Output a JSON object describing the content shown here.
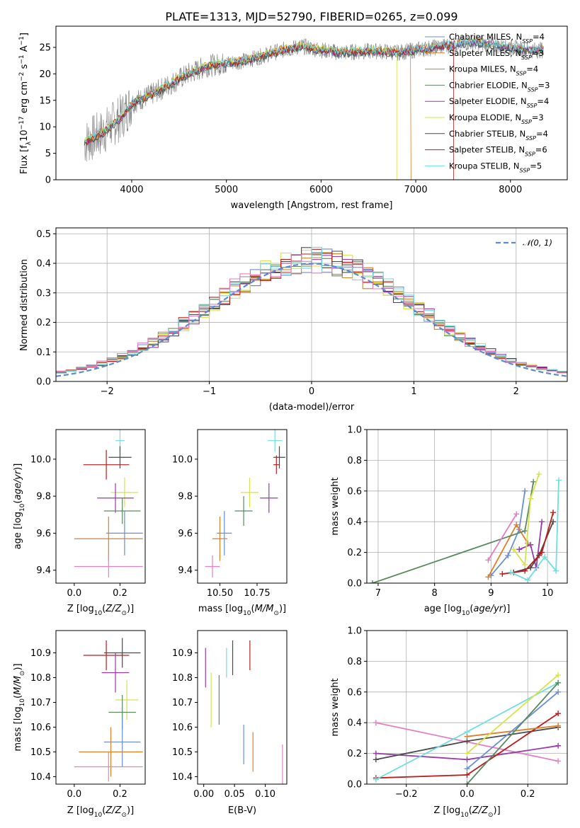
{
  "colors": {
    "Chabrier MILES": "#6a8fd5",
    "Salpeter MILES": "#e07f2a",
    "Kroupa MILES": "#c08a1e",
    "Chabrier ELODIE": "#5a8a60",
    "Salpeter ELODIE": "#9a3aa8",
    "Kroupa ELODIE": "#d6e34a",
    "Chabrier STELIB": "#4a4a4a",
    "Salpeter STELIB": "#b81e1e",
    "Kroupa STELIB": "#6fdede",
    "pink": "#e57fbf",
    "data": "#7f7f7f",
    "grid": "#b0b0b0"
  },
  "chart_data": [
    {
      "type": "line",
      "title": "PLATE=1313, MJD=52790, FIBERID=0265, z=0.099",
      "xlabel": "wavelength [Angstrom, rest frame]",
      "ylabel": "Flux [f_λ10^{-17} erg cm^{-2} s^{-1} A^{-1}]",
      "xlim": [
        3200,
        8600
      ],
      "ylim": [
        0,
        29
      ],
      "xticks": [
        4000,
        5000,
        6000,
        7000,
        8000
      ],
      "yticks": [
        0,
        5,
        10,
        15,
        20,
        25
      ],
      "grid": false,
      "legend": "top-right",
      "series": [
        {
          "name": "Chabrier MILES, N_SSP=4"
        },
        {
          "name": "Salpeter MILES, N_SSP=3"
        },
        {
          "name": "Kroupa MILES, N_SSP=4"
        },
        {
          "name": "Chabrier ELODIE, N_SSP=3"
        },
        {
          "name": "Salpeter ELODIE, N_SSP=4"
        },
        {
          "name": "Kroupa ELODIE, N_SSP=3"
        },
        {
          "name": "Chabrier STELIB, N_SSP=4"
        },
        {
          "name": "Salpeter STELIB, N_SSP=6"
        },
        {
          "name": "Kroupa STELIB, N_SSP=5"
        }
      ],
      "continuum": {
        "x": [
          3500,
          3700,
          3900,
          4000,
          4200,
          4400,
          4600,
          4800,
          5000,
          5200,
          5400,
          5600,
          5800,
          6000,
          6200,
          6400,
          6600,
          6800,
          7000,
          7200,
          7400,
          7600,
          7800,
          8000,
          8200,
          8350
        ],
        "y": [
          7,
          9,
          12,
          14.5,
          16,
          18,
          20,
          21.5,
          22,
          22.5,
          23.5,
          24.5,
          25.2,
          24.5,
          24,
          24.2,
          24.3,
          24,
          24.5,
          25,
          25.5,
          26,
          25.5,
          25,
          24.5,
          24.5
        ]
      }
    },
    {
      "type": "histogram",
      "xlabel": "(data-model)/error",
      "ylabel": "Normed distribution",
      "xlim": [
        -2.5,
        2.5
      ],
      "ylim": [
        0,
        0.52
      ],
      "xticks": [
        -2,
        -1,
        0,
        1,
        2
      ],
      "yticks": [
        0.0,
        0.1,
        0.2,
        0.3,
        0.4,
        0.5
      ],
      "grid": true,
      "legend": "top-right",
      "reference": {
        "name": "𝒩(0, 1)",
        "mean": 0,
        "sigma": 1
      },
      "bin_width": 0.1
    },
    {
      "type": "scatter",
      "xlabel": "Z [log10(Z/Z⊙)]",
      "ylabel": "age  [log10(age/yr)]",
      "xlim": [
        -0.08,
        0.31
      ],
      "ylim": [
        9.33,
        10.16
      ],
      "xticks": [
        0.0,
        0.2
      ],
      "yticks": [
        9.4,
        9.6,
        9.8,
        10.0
      ],
      "points": [
        {
          "c": "Kroupa STELIB",
          "x": 0.2,
          "y": 10.1,
          "xe": 0.02,
          "ye": 0.06
        },
        {
          "c": "Chabrier STELIB",
          "x": 0.2,
          "y": 10.01,
          "xe": 0.05,
          "ye": 0.06
        },
        {
          "c": "Salpeter STELIB",
          "x": 0.14,
          "y": 9.97,
          "xe": 0.1,
          "ye": 0.08
        },
        {
          "c": "Kroupa ELODIE",
          "x": 0.22,
          "y": 9.82,
          "xe": 0.06,
          "ye": 0.08
        },
        {
          "c": "Salpeter ELODIE",
          "x": 0.18,
          "y": 9.79,
          "xe": 0.08,
          "ye": 0.08
        },
        {
          "c": "Chabrier ELODIE",
          "x": 0.21,
          "y": 9.72,
          "xe": 0.08,
          "ye": 0.07
        },
        {
          "c": "Chabrier MILES",
          "x": 0.22,
          "y": 9.6,
          "xe": 0.08,
          "ye": 0.12
        },
        {
          "c": "Salpeter MILES",
          "x": 0.15,
          "y": 9.57,
          "xe": 0.15,
          "ye": 0.12
        },
        {
          "c": "pink",
          "x": 0.15,
          "y": 9.42,
          "xe": 0.15,
          "ye": 0.06
        }
      ]
    },
    {
      "type": "scatter",
      "xlabel": "mass [log10(M/M⊙)]",
      "ylabel": "",
      "xlim": [
        10.35,
        10.95
      ],
      "ylim": [
        9.33,
        10.16
      ],
      "xticks": [
        10.5,
        10.75
      ],
      "yticks": [
        9.4,
        9.6,
        9.8,
        10.0
      ],
      "points": [
        {
          "c": "Kroupa STELIB",
          "x": 10.87,
          "y": 10.1,
          "xe": 0.05,
          "ye": 0.06
        },
        {
          "c": "Chabrier STELIB",
          "x": 10.9,
          "y": 10.01,
          "xe": 0.04,
          "ye": 0.06
        },
        {
          "c": "Salpeter STELIB",
          "x": 10.88,
          "y": 9.97,
          "xe": 0.02,
          "ye": 0.05
        },
        {
          "c": "Kroupa ELODIE",
          "x": 10.7,
          "y": 9.82,
          "xe": 0.06,
          "ye": 0.08
        },
        {
          "c": "Salpeter ELODIE",
          "x": 10.83,
          "y": 9.79,
          "xe": 0.06,
          "ye": 0.08
        },
        {
          "c": "Chabrier ELODIE",
          "x": 10.66,
          "y": 9.72,
          "xe": 0.06,
          "ye": 0.08
        },
        {
          "c": "Chabrier MILES",
          "x": 10.53,
          "y": 9.6,
          "xe": 0.05,
          "ye": 0.12
        },
        {
          "c": "Salpeter MILES",
          "x": 10.5,
          "y": 9.57,
          "xe": 0.05,
          "ye": 0.12
        },
        {
          "c": "pink",
          "x": 10.45,
          "y": 9.42,
          "xe": 0.05,
          "ye": 0.06
        }
      ]
    },
    {
      "type": "line",
      "xlabel": "age  [log10(age/yr)]",
      "ylabel": "mass weight",
      "xlim": [
        6.8,
        10.35
      ],
      "ylim": [
        0,
        1.0
      ],
      "xticks": [
        7,
        8,
        9,
        10
      ],
      "yticks": [
        0.0,
        0.2,
        0.4,
        0.6,
        0.8,
        1.0
      ],
      "grid": true,
      "series": [
        {
          "c": "Chabrier MILES",
          "x": [
            9.0,
            9.3,
            9.5,
            9.6
          ],
          "y": [
            0.05,
            0.18,
            0.35,
            0.6
          ]
        },
        {
          "c": "Salpeter MILES",
          "x": [
            8.95,
            9.45,
            9.65
          ],
          "y": [
            0.04,
            0.38,
            0.26
          ]
        },
        {
          "c": "Chabrier ELODIE",
          "x": [
            6.9,
            9.6,
            9.75
          ],
          "y": [
            0.0,
            0.34,
            0.66
          ]
        },
        {
          "c": "Salpeter ELODIE",
          "x": [
            9.5,
            9.7,
            9.8,
            9.9
          ],
          "y": [
            0.22,
            0.25,
            0.1,
            0.4
          ]
        },
        {
          "c": "Kroupa ELODIE",
          "x": [
            9.4,
            9.6,
            9.7,
            9.85
          ],
          "y": [
            0.22,
            0.12,
            0.55,
            0.71
          ]
        },
        {
          "c": "Chabrier STELIB",
          "x": [
            9.4,
            9.7,
            9.85,
            10.1
          ],
          "y": [
            0.07,
            0.1,
            0.18,
            0.4
          ]
        },
        {
          "c": "Salpeter STELIB",
          "x": [
            9.2,
            9.6,
            9.9,
            10.1
          ],
          "y": [
            0.06,
            0.08,
            0.2,
            0.46
          ]
        },
        {
          "c": "Kroupa STELIB",
          "x": [
            9.35,
            9.65,
            9.95,
            10.15,
            10.2
          ],
          "y": [
            0.07,
            0.02,
            0.17,
            0.08,
            0.67
          ]
        },
        {
          "c": "pink",
          "x": [
            8.95,
            9.45
          ],
          "y": [
            0.15,
            0.45
          ]
        }
      ]
    },
    {
      "type": "scatter",
      "xlabel": "Z [log10(Z/Z⊙)]",
      "ylabel": "mass [log10(M/M⊙)]",
      "xlim": [
        -0.08,
        0.31
      ],
      "ylim": [
        10.37,
        10.99
      ],
      "xticks": [
        0.0,
        0.2
      ],
      "yticks": [
        10.4,
        10.5,
        10.6,
        10.7,
        10.8,
        10.9
      ],
      "points": [
        {
          "c": "Chabrier STELIB",
          "x": 0.21,
          "y": 10.9,
          "xe": 0.08,
          "ye": 0.06
        },
        {
          "c": "Salpeter STELIB",
          "x": 0.14,
          "y": 10.89,
          "xe": 0.1,
          "ye": 0.06
        },
        {
          "c": "Salpeter ELODIE",
          "x": 0.18,
          "y": 10.82,
          "xe": 0.06,
          "ye": 0.08
        },
        {
          "c": "Kroupa ELODIE",
          "x": 0.23,
          "y": 10.71,
          "xe": 0.05,
          "ye": 0.08
        },
        {
          "c": "Chabrier ELODIE",
          "x": 0.21,
          "y": 10.66,
          "xe": 0.06,
          "ye": 0.07
        },
        {
          "c": "Chabrier MILES",
          "x": 0.21,
          "y": 10.54,
          "xe": 0.08,
          "ye": 0.1
        },
        {
          "c": "Salpeter MILES",
          "x": 0.16,
          "y": 10.5,
          "xe": 0.14,
          "ye": 0.1
        },
        {
          "c": "pink",
          "x": 0.15,
          "y": 10.44,
          "xe": 0.15,
          "ye": 0.06
        }
      ]
    },
    {
      "type": "scatter",
      "xlabel": "E(B-V)",
      "ylabel": "",
      "xlim": [
        -0.01,
        0.135
      ],
      "ylim": [
        10.37,
        10.99
      ],
      "xticks": [
        0.0,
        0.05,
        0.1
      ],
      "yticks": [
        10.4,
        10.5,
        10.6,
        10.7,
        10.8,
        10.9
      ],
      "points": [
        {
          "c": "Salpeter STELIB",
          "x": 0.075,
          "y": 10.89,
          "xe": 0,
          "ye": 0.06
        },
        {
          "c": "Chabrier STELIB",
          "x": 0.047,
          "y": 10.88,
          "xe": 0,
          "ye": 0.07
        },
        {
          "c": "Kroupa STELIB",
          "x": 0.037,
          "y": 10.86,
          "xe": 0,
          "ye": 0.06
        },
        {
          "c": "Salpeter ELODIE",
          "x": 0.003,
          "y": 10.84,
          "xe": 0,
          "ye": 0.08
        },
        {
          "c": "Kroupa ELODIE",
          "x": 0.012,
          "y": 10.71,
          "xe": 0,
          "ye": 0.11
        },
        {
          "c": "Chabrier ELODIE",
          "x": 0.025,
          "y": 10.71,
          "xe": 0,
          "ye": 0.1
        },
        {
          "c": "Chabrier MILES",
          "x": 0.065,
          "y": 10.53,
          "xe": 0,
          "ye": 0.08
        },
        {
          "c": "Salpeter MILES",
          "x": 0.08,
          "y": 10.5,
          "xe": 0,
          "ye": 0.08
        },
        {
          "c": "pink",
          "x": 0.128,
          "y": 10.44,
          "xe": 0,
          "ye": 0.09
        }
      ]
    },
    {
      "type": "line",
      "xlabel": "Z [log10(Z/Z⊙)]",
      "ylabel": "mass weight",
      "xlim": [
        -0.33,
        0.33
      ],
      "ylim": [
        0,
        1.0
      ],
      "xticks": [
        -0.2,
        0.0,
        0.2
      ],
      "yticks": [
        0.0,
        0.2,
        0.4,
        0.6,
        0.8,
        1.0
      ],
      "grid": true,
      "series": [
        {
          "c": "pink",
          "x": [
            -0.3,
            0.3
          ],
          "y": [
            0.4,
            0.15
          ]
        },
        {
          "c": "Salpeter ELODIE",
          "x": [
            -0.3,
            0.0,
            0.3
          ],
          "y": [
            0.2,
            0.16,
            0.25
          ]
        },
        {
          "c": "Chabrier STELIB",
          "x": [
            -0.3,
            0.0,
            0.3
          ],
          "y": [
            0.16,
            0.28,
            0.37
          ]
        },
        {
          "c": "Salpeter STELIB",
          "x": [
            -0.3,
            0.0,
            0.3
          ],
          "y": [
            0.04,
            0.06,
            0.46
          ]
        },
        {
          "c": "Kroupa STELIB",
          "x": [
            -0.3,
            0.0,
            0.3
          ],
          "y": [
            0.03,
            0.34,
            0.66
          ]
        },
        {
          "c": "Salpeter MILES",
          "x": [
            0.0,
            0.3
          ],
          "y": [
            0.31,
            0.38
          ]
        },
        {
          "c": "Chabrier MILES",
          "x": [
            0.0,
            0.3
          ],
          "y": [
            0.1,
            0.6
          ]
        },
        {
          "c": "Kroupa ELODIE",
          "x": [
            0.0,
            0.3
          ],
          "y": [
            0.2,
            0.71
          ]
        },
        {
          "c": "Chabrier ELODIE",
          "x": [
            0.0,
            0.3
          ],
          "y": [
            0.0,
            0.66
          ]
        }
      ]
    }
  ]
}
